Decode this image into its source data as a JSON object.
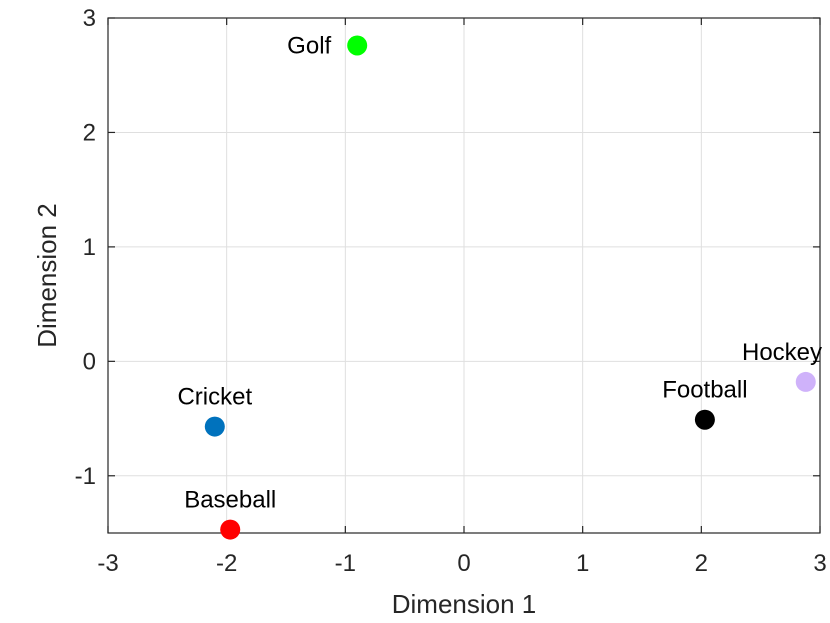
{
  "chart_data": {
    "type": "scatter",
    "xlabel": "Dimension 1",
    "ylabel": "Dimension 2",
    "xlim": [
      -3,
      3
    ],
    "ylim": [
      -1.5,
      3
    ],
    "xticks": [
      -3,
      -2,
      -1,
      0,
      1,
      2,
      3
    ],
    "yticks": [
      -1,
      0,
      1,
      2,
      3
    ],
    "xtick_labels": [
      "-3",
      "-2",
      "-1",
      "0",
      "1",
      "2",
      "3"
    ],
    "ytick_labels": [
      "-1",
      "0",
      "1",
      "2",
      "3"
    ],
    "grid": true,
    "legend": false,
    "points": [
      {
        "label": "Golf",
        "x": -0.9,
        "y": 2.76,
        "color": "#00ff00",
        "label_pos": "left"
      },
      {
        "label": "Cricket",
        "x": -2.1,
        "y": -0.57,
        "color": "#0072bd",
        "label_pos": "above"
      },
      {
        "label": "Baseball",
        "x": -1.97,
        "y": -1.47,
        "color": "#ff0000",
        "label_pos": "above"
      },
      {
        "label": "Football",
        "x": 2.03,
        "y": -0.51,
        "color": "#000000",
        "label_pos": "above"
      },
      {
        "label": "Hockey",
        "x": 2.88,
        "y": -0.18,
        "color": "#cfb2fa",
        "label_pos": "above"
      }
    ]
  }
}
